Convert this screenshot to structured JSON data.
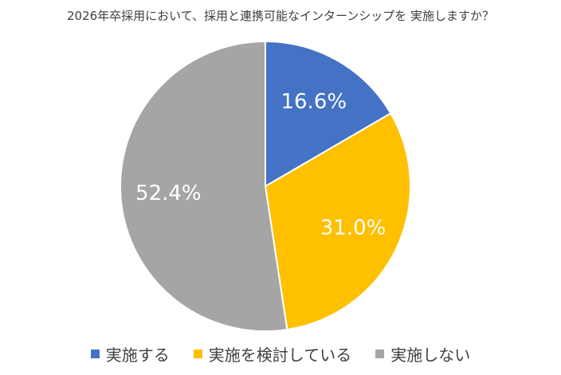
{
  "chart_data": {
    "type": "pie",
    "title": "2026年卒採用において、採用と連携可能なインターンシップを 実施しますか？",
    "legend_position": "bottom",
    "series": [
      {
        "name": "実施する",
        "value": 16.6,
        "label": "16.6%",
        "color": "#4472C4"
      },
      {
        "name": "実施を検討している",
        "value": 31.0,
        "label": "31.0%",
        "color": "#FFC000"
      },
      {
        "name": "実施しない",
        "value": 52.4,
        "label": "52.4%",
        "color": "#A5A5A5"
      }
    ]
  }
}
